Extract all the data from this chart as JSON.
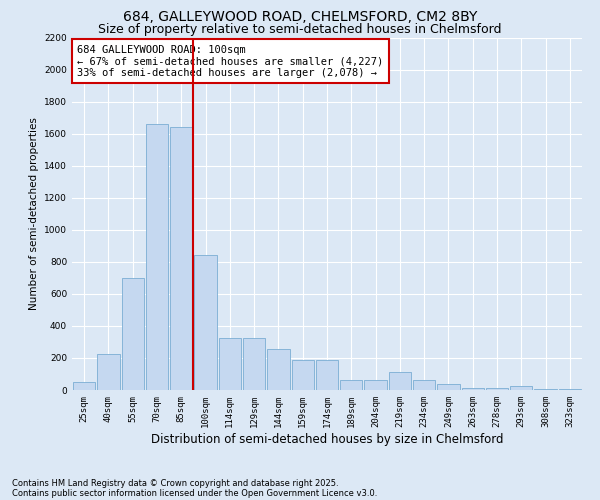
{
  "title1": "684, GALLEYWOOD ROAD, CHELMSFORD, CM2 8BY",
  "title2": "Size of property relative to semi-detached houses in Chelmsford",
  "xlabel": "Distribution of semi-detached houses by size in Chelmsford",
  "ylabel": "Number of semi-detached properties",
  "categories": [
    "25sqm",
    "40sqm",
    "55sqm",
    "70sqm",
    "85sqm",
    "100sqm",
    "114sqm",
    "129sqm",
    "144sqm",
    "159sqm",
    "174sqm",
    "189sqm",
    "204sqm",
    "219sqm",
    "234sqm",
    "249sqm",
    "263sqm",
    "278sqm",
    "293sqm",
    "308sqm",
    "323sqm"
  ],
  "values": [
    50,
    225,
    700,
    1660,
    1640,
    840,
    325,
    325,
    255,
    185,
    185,
    65,
    65,
    110,
    65,
    40,
    15,
    15,
    25,
    5,
    5
  ],
  "bar_color": "#c5d8f0",
  "bar_edge_color": "#7aadd4",
  "vline_color": "#cc0000",
  "annotation_text": "684 GALLEYWOOD ROAD: 100sqm\n← 67% of semi-detached houses are smaller (4,227)\n33% of semi-detached houses are larger (2,078) →",
  "annotation_box_color": "#ffffff",
  "annotation_box_edge": "#cc0000",
  "ylim": [
    0,
    2200
  ],
  "yticks": [
    0,
    200,
    400,
    600,
    800,
    1000,
    1200,
    1400,
    1600,
    1800,
    2000,
    2200
  ],
  "background_color": "#dce8f5",
  "grid_color": "#ffffff",
  "footer1": "Contains HM Land Registry data © Crown copyright and database right 2025.",
  "footer2": "Contains public sector information licensed under the Open Government Licence v3.0.",
  "title1_fontsize": 10,
  "title2_fontsize": 9,
  "xlabel_fontsize": 8.5,
  "ylabel_fontsize": 7.5,
  "tick_fontsize": 6.5,
  "annotation_fontsize": 7.5,
  "footer_fontsize": 6
}
